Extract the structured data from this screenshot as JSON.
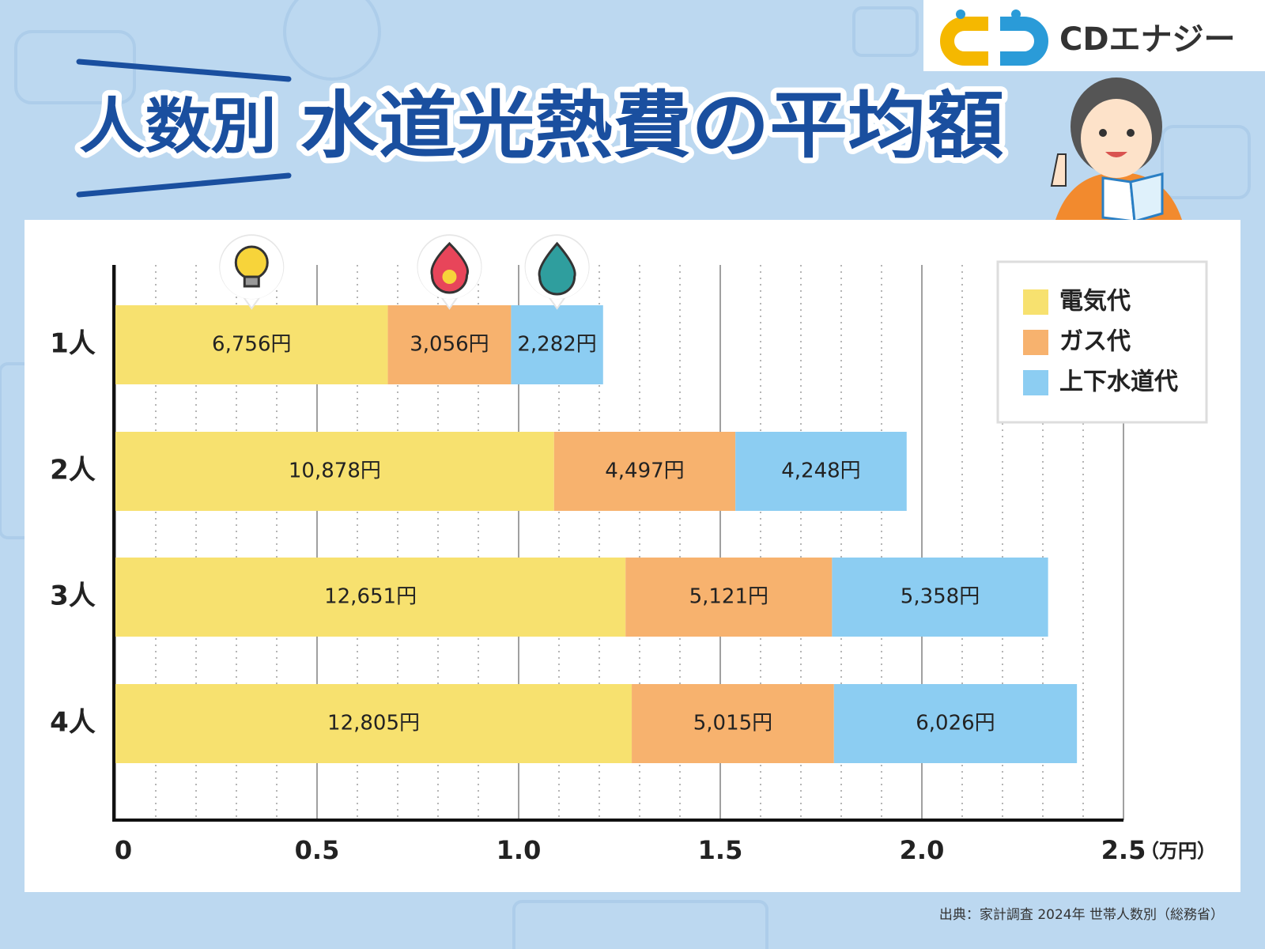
{
  "logo": "CDエナジー",
  "title_prefix": "人数別",
  "title": "水道光熱費の平均額",
  "source": "出典：家計調査 2024年 世帯人数別（総務省）",
  "chart_data": {
    "type": "stacked_barh",
    "categories": [
      "1人",
      "2人",
      "3人",
      "4人"
    ],
    "series": [
      {
        "name": "電気代",
        "color": "#f7e16f",
        "values": [
          0.6756,
          1.0878,
          1.2651,
          1.2805
        ],
        "value_labels": [
          "6,756円",
          "10,878円",
          "12,651円",
          "12,805円"
        ]
      },
      {
        "name": "ガス代",
        "color": "#f7b26e",
        "values": [
          0.3056,
          0.4497,
          0.5121,
          0.5015
        ],
        "value_labels": [
          "3,056円",
          "4,497円",
          "5,121円",
          "5,015円"
        ]
      },
      {
        "name": "上下水道代",
        "color": "#8ccdf2",
        "values": [
          0.2282,
          0.4248,
          0.5358,
          0.6026
        ],
        "value_labels": [
          "2,282円",
          "4,248円",
          "5,358円",
          "6,026円"
        ]
      }
    ],
    "xlim": [
      0,
      2.5
    ],
    "xticks": [
      0,
      0.5,
      {
        "value": 1,
        "label": "1.0"
      },
      1.5,
      {
        "value": 2,
        "label": "2.0"
      },
      2.5
    ],
    "minor_xticks": [
      0.1,
      0.2,
      0.3,
      0.4,
      0.6,
      0.7,
      0.8,
      0.9,
      1.1,
      1.2,
      1.3,
      1.4,
      1.6,
      1.7,
      1.8,
      1.9,
      2.1,
      2.2,
      2.3,
      2.4
    ],
    "x_unit": "（万円）",
    "grid": true,
    "legend": "upper right"
  }
}
